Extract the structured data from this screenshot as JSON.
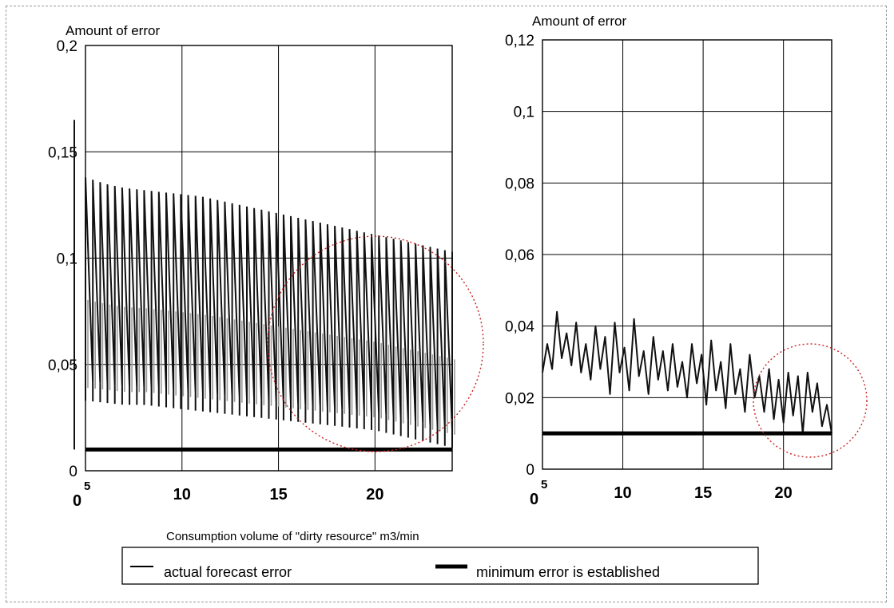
{
  "chart_data": [
    {
      "type": "line",
      "ylabel": "Amount of error",
      "ylim": [
        0,
        0.2
      ],
      "xlim": [
        5,
        24
      ],
      "x_ticks": [
        "5",
        "10",
        "15",
        "20"
      ],
      "y_ticks": [
        "0",
        "0,05",
        "0,1",
        "0,15",
        "0,2"
      ],
      "origin_label": "0",
      "grid": true,
      "series": [
        {
          "name": "actual forecast error",
          "style": "sawtooth-oscillation",
          "color": "#111111",
          "x": [
            5,
            6,
            7,
            8,
            9,
            10,
            11,
            12,
            13,
            14,
            15,
            16,
            17,
            18,
            19,
            20,
            21,
            22,
            23,
            24
          ],
          "upper": [
            0.138,
            0.135,
            0.133,
            0.132,
            0.131,
            0.13,
            0.129,
            0.127,
            0.125,
            0.123,
            0.121,
            0.119,
            0.117,
            0.115,
            0.113,
            0.111,
            0.109,
            0.107,
            0.105,
            0.103
          ],
          "lower": [
            0.033,
            0.032,
            0.031,
            0.031,
            0.03,
            0.029,
            0.028,
            0.027,
            0.026,
            0.025,
            0.024,
            0.023,
            0.022,
            0.021,
            0.02,
            0.019,
            0.017,
            0.015,
            0.013,
            0.011
          ]
        },
        {
          "name": "minimum error is established",
          "style": "thick",
          "color": "#000000",
          "x": [
            5,
            24
          ],
          "y": [
            0.01,
            0.01
          ]
        }
      ]
    },
    {
      "type": "line",
      "ylabel": "Amount of error",
      "ylim": [
        0,
        0.12
      ],
      "xlim": [
        5,
        23
      ],
      "x_ticks": [
        "5",
        "10",
        "15",
        "20"
      ],
      "y_ticks": [
        "0",
        "0,02",
        "0,04",
        "0,06",
        "0,08",
        "0,1",
        "0,12"
      ],
      "origin_label": "0",
      "grid": true,
      "series": [
        {
          "name": "actual forecast error",
          "style": "line",
          "color": "#111111",
          "x": [
            5,
            5.3,
            5.6,
            5.9,
            6.2,
            6.5,
            6.8,
            7.1,
            7.4,
            7.7,
            8.0,
            8.3,
            8.6,
            8.9,
            9.2,
            9.5,
            9.8,
            10.1,
            10.4,
            10.7,
            11.0,
            11.3,
            11.6,
            11.9,
            12.2,
            12.5,
            12.8,
            13.1,
            13.4,
            13.7,
            14.0,
            14.3,
            14.6,
            14.9,
            15.2,
            15.5,
            15.8,
            16.1,
            16.4,
            16.7,
            17.0,
            17.3,
            17.6,
            17.9,
            18.2,
            18.5,
            18.8,
            19.1,
            19.4,
            19.7,
            20.0,
            20.3,
            20.6,
            20.9,
            21.2,
            21.5,
            21.8,
            22.1,
            22.4,
            22.7,
            23.0
          ],
          "y": [
            0.027,
            0.035,
            0.028,
            0.044,
            0.031,
            0.038,
            0.029,
            0.041,
            0.027,
            0.035,
            0.025,
            0.04,
            0.028,
            0.037,
            0.021,
            0.041,
            0.027,
            0.034,
            0.022,
            0.042,
            0.026,
            0.033,
            0.021,
            0.037,
            0.025,
            0.033,
            0.022,
            0.035,
            0.023,
            0.03,
            0.02,
            0.035,
            0.024,
            0.032,
            0.018,
            0.036,
            0.022,
            0.03,
            0.017,
            0.035,
            0.021,
            0.028,
            0.016,
            0.032,
            0.02,
            0.026,
            0.016,
            0.028,
            0.014,
            0.025,
            0.013,
            0.027,
            0.015,
            0.026,
            0.01,
            0.027,
            0.016,
            0.024,
            0.012,
            0.018,
            0.01
          ]
        },
        {
          "name": "minimum error is established",
          "style": "thick",
          "color": "#000000",
          "x": [
            5,
            23
          ],
          "y": [
            0.01,
            0.01
          ]
        }
      ]
    }
  ],
  "xlabel": "Consumption volume of \"dirty resource\" m3/min",
  "legend": {
    "placement": "bottom",
    "items": [
      {
        "label": "actual forecast error",
        "style": "thin"
      },
      {
        "label": "minimum error is established",
        "style": "thick"
      }
    ]
  },
  "highlight_color": "#cc2222"
}
